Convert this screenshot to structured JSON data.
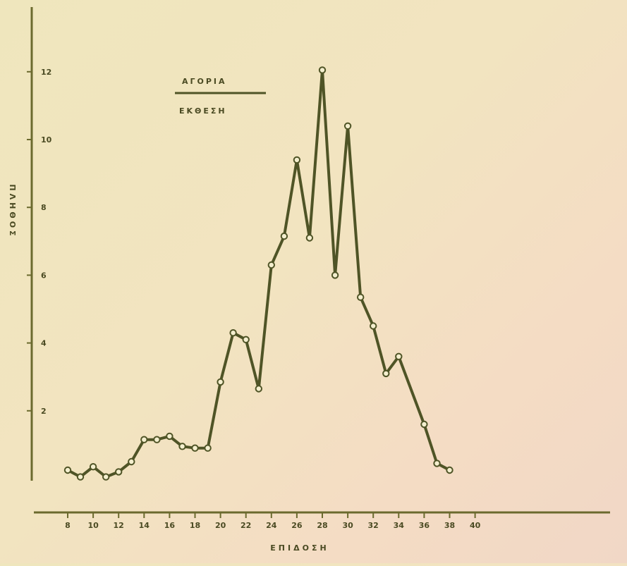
{
  "chart_data": {
    "type": "line",
    "title": "",
    "xlabel": "ΕΠΙΔΟΣΗ",
    "ylabel": "ΠΛΗΘΟΣ",
    "legend": {
      "series_label": "ΑΓΟΡΙΑ",
      "sublabel": "ΕΚΘΕΣΗ",
      "placement": "top-left"
    },
    "xlim": [
      6,
      40
    ],
    "ylim": [
      0,
      13
    ],
    "x_ticks": [
      8,
      10,
      12,
      14,
      16,
      18,
      20,
      22,
      24,
      26,
      28,
      30,
      32,
      34,
      36,
      38,
      40
    ],
    "y_ticks": [
      2,
      4,
      6,
      8,
      10,
      12
    ],
    "grid": false,
    "series": [
      {
        "name": "ΑΓΟΡΙΑ",
        "x": [
          8,
          9,
          10,
          11,
          12,
          13,
          14,
          15,
          16,
          17,
          18,
          19,
          20,
          21,
          22,
          23,
          24,
          25,
          26,
          27,
          28,
          29,
          30,
          31,
          32,
          33,
          34,
          36,
          37,
          38
        ],
        "y": [
          0.25,
          0.05,
          0.35,
          0.05,
          0.2,
          0.5,
          1.15,
          1.15,
          1.25,
          0.95,
          0.9,
          0.9,
          2.85,
          4.3,
          4.1,
          2.65,
          6.3,
          7.15,
          9.4,
          7.1,
          12.05,
          6.0,
          10.4,
          5.35,
          4.5,
          3.1,
          3.6,
          1.6,
          0.45,
          0.25
        ]
      }
    ],
    "colors": {
      "line": "#4f5426",
      "marker_fill": "#f4efcf",
      "axis": "#6b6a2e",
      "text": "#4a4a22"
    }
  }
}
